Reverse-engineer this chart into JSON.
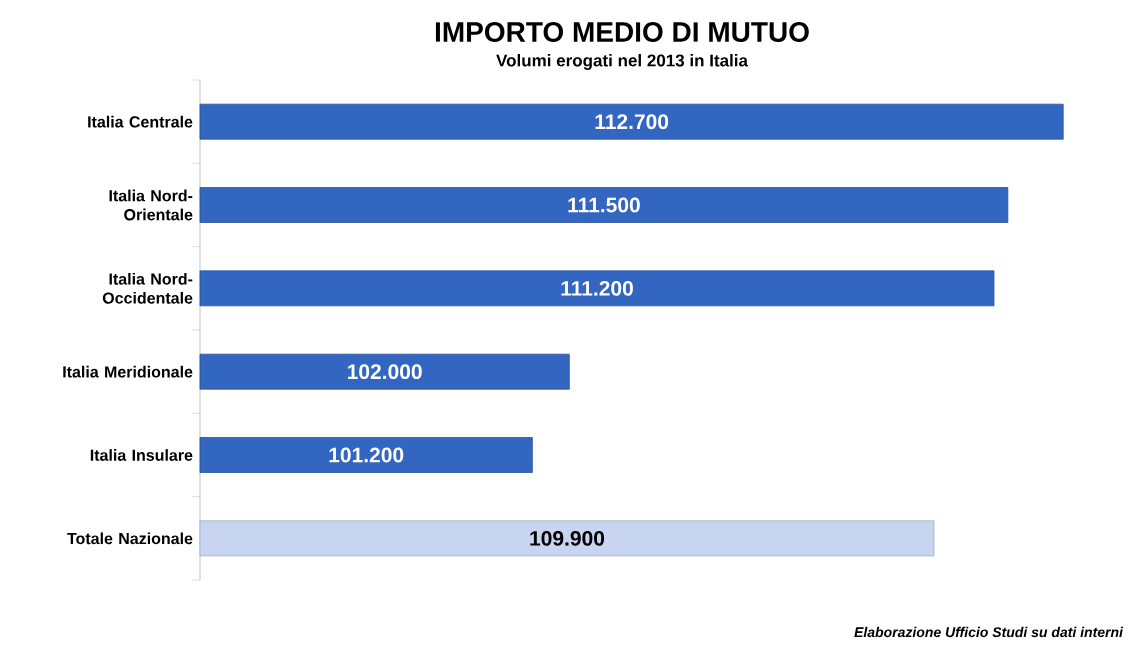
{
  "chart_data": {
    "type": "bar",
    "orientation": "horizontal",
    "title": "IMPORTO MEDIO DI MUTUO",
    "subtitle": "Volumi erogati nel 2013 in Italia",
    "categories": [
      "Italia Centrale",
      "Italia Nord-Orientale",
      "Italia Nord-Occidentale",
      "Italia Meridionale",
      "Italia Insulare",
      "Totale Nazionale"
    ],
    "values": [
      112700,
      111500,
      111200,
      102000,
      101200,
      109900
    ],
    "value_labels": [
      "112.700",
      "111.500",
      "111.200",
      "102.000",
      "101.200",
      "109.900"
    ],
    "colors": [
      "#3366c0",
      "#3366c0",
      "#3366c0",
      "#3366c0",
      "#3366c0",
      "#c8d5f0"
    ],
    "xlim": [
      94000,
      112700
    ],
    "tick_labels": "y",
    "grid": false,
    "annotations": [
      "Elaborazione Ufficio Studi su dati interni"
    ]
  }
}
